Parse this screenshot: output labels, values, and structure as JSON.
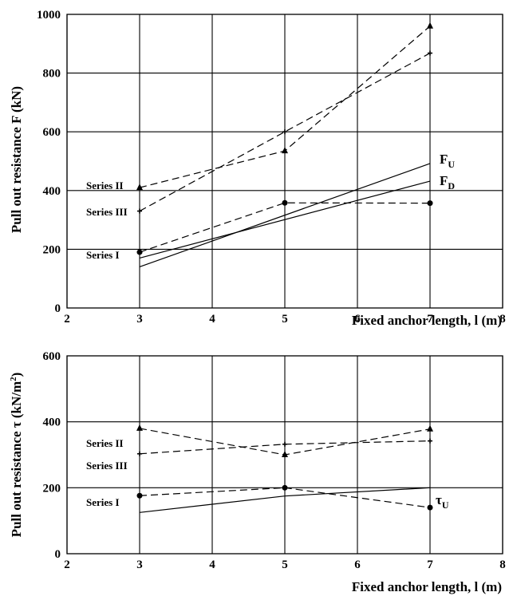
{
  "chart_data": [
    {
      "type": "line",
      "xlabel": "Fixed anchor length, l (m)",
      "ylabel": "Pull out resistance F (kN)",
      "xlim": [
        2,
        8
      ],
      "ylim": [
        0,
        1000
      ],
      "xticks": [
        "2",
        "3",
        "4",
        "5",
        "6",
        "7",
        "8"
      ],
      "yticks": [
        "0",
        "200",
        "400",
        "600",
        "800",
        "1000"
      ],
      "grid": true,
      "series": [
        {
          "name": "Series I",
          "x": [
            3,
            5,
            7
          ],
          "y": [
            190,
            358,
            357
          ],
          "style": "dashed",
          "marker": "circle"
        },
        {
          "name": "Series II",
          "x": [
            3,
            5,
            7
          ],
          "y": [
            410,
            535,
            960
          ],
          "style": "dashed",
          "marker": "triangle"
        },
        {
          "name": "Series III",
          "x": [
            3,
            5,
            7
          ],
          "y": [
            330,
            600,
            868
          ],
          "style": "dashed",
          "marker": "plus"
        },
        {
          "name": "F",
          "subscript": "U",
          "x": [
            3,
            7
          ],
          "y": [
            140,
            492
          ],
          "style": "solid",
          "marker": "none"
        },
        {
          "name": "F",
          "subscript": "D",
          "x": [
            3,
            7
          ],
          "y": [
            170,
            432
          ],
          "style": "solid",
          "marker": "none"
        }
      ]
    },
    {
      "type": "line",
      "xlabel": "Fixed anchor length, l (m)",
      "ylabel": "Pull out resistance τ (kN/m",
      "ylabel_sup": "2",
      "ylabel_end": ")",
      "xlim": [
        2,
        8
      ],
      "ylim": [
        0,
        600
      ],
      "xticks": [
        "2",
        "3",
        "4",
        "5",
        "6",
        "7",
        "8"
      ],
      "yticks": [
        "0",
        "200",
        "400",
        "600"
      ],
      "grid": true,
      "series": [
        {
          "name": "Series I",
          "x": [
            3,
            5,
            7
          ],
          "y": [
            176,
            200,
            140
          ],
          "style": "dashed",
          "marker": "circle"
        },
        {
          "name": "Series II",
          "x": [
            3,
            5,
            7
          ],
          "y": [
            380,
            300,
            378
          ],
          "style": "dashed",
          "marker": "triangle"
        },
        {
          "name": "Series III",
          "x": [
            3,
            5,
            7
          ],
          "y": [
            303,
            332,
            342
          ],
          "style": "dashed",
          "marker": "plus"
        },
        {
          "name": "τ",
          "subscript": "U",
          "x": [
            3,
            5,
            7
          ],
          "y": [
            125,
            175,
            200
          ],
          "style": "solid",
          "marker": "none"
        }
      ]
    }
  ]
}
